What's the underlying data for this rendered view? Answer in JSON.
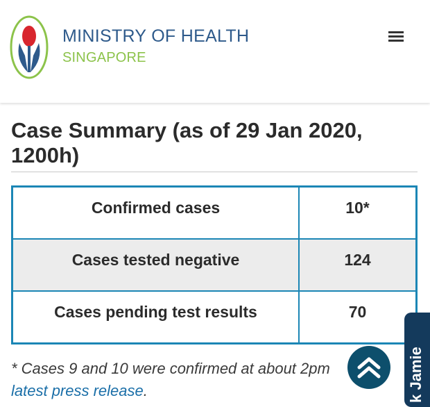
{
  "header": {
    "brand_title": "MINISTRY OF HEALTH",
    "brand_subtitle": "SINGAPORE",
    "logo_icon": "moh-logo-icon",
    "menu_icon": "hamburger-menu-icon",
    "brand_color": "#2e5a8b",
    "accent_color": "#8cc34a"
  },
  "main": {
    "title": "Case Summary (as of 29 Jan 2020, 1200h)",
    "table": {
      "border_color": "#1b86b5",
      "rows": [
        {
          "label": "Confirmed cases",
          "value": "10*"
        },
        {
          "label": "Cases tested negative",
          "value": "124"
        },
        {
          "label": "Cases pending test results",
          "value": "70"
        }
      ]
    },
    "footnote": {
      "text": "* Cases 9 and 10 were confirmed at about 2pm",
      "link_text": "latest press release",
      "trailing": "."
    }
  },
  "widgets": {
    "scroll_top_icon": "double-chevron-up-icon",
    "side_tab_label": "k Jamie"
  }
}
